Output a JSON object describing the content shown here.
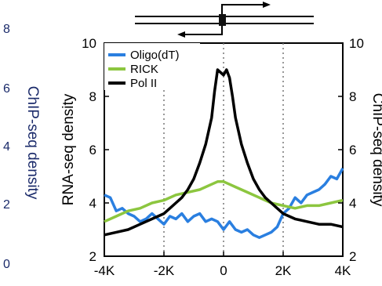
{
  "chart_data": {
    "type": "line",
    "x_ticks": [
      "-4K",
      "-2K",
      "0",
      "2K",
      "4K"
    ],
    "y_left_ticks": [
      "2",
      "4",
      "6",
      "8",
      "10"
    ],
    "y_right_ticks": [
      "2",
      "4",
      "6",
      "8",
      "10"
    ],
    "xlim": [
      -4000,
      4000
    ],
    "ylim": [
      2,
      10
    ],
    "ylabel_left": "RNA-seq density",
    "ylabel_right": "ChIP-seq density",
    "left_panel_fragment": {
      "ylabel": "ChIP-seq density",
      "ticks": [
        "8",
        "6",
        "4",
        "2",
        "0"
      ]
    },
    "legend": {
      "placement": "top-left"
    },
    "grid": {
      "vertical_dotted": [
        -2000,
        0,
        2000
      ]
    },
    "series": [
      {
        "name": "Oligo(dT)",
        "color": "#2a7fe0",
        "x": [
          -4000,
          -3800,
          -3600,
          -3400,
          -3200,
          -3000,
          -2800,
          -2600,
          -2400,
          -2200,
          -2000,
          -1800,
          -1600,
          -1400,
          -1200,
          -1000,
          -800,
          -600,
          -400,
          -200,
          0,
          200,
          400,
          600,
          800,
          1000,
          1200,
          1400,
          1600,
          1800,
          2000,
          2200,
          2400,
          2600,
          2800,
          3000,
          3200,
          3400,
          3600,
          3800,
          4000
        ],
        "y": [
          4.3,
          4.2,
          3.7,
          3.8,
          3.6,
          3.5,
          3.3,
          3.4,
          3.6,
          3.4,
          3.2,
          3.5,
          3.4,
          3.6,
          3.3,
          3.5,
          3.6,
          3.3,
          3.4,
          3.3,
          3.0,
          3.3,
          3.0,
          2.9,
          3.0,
          2.8,
          2.7,
          2.8,
          2.9,
          3.1,
          3.6,
          3.8,
          4.2,
          4.0,
          4.3,
          4.4,
          4.5,
          4.7,
          5.0,
          4.9,
          5.3
        ]
      },
      {
        "name": "RICK",
        "color": "#8cc63f",
        "x": [
          -4000,
          -3600,
          -3200,
          -2800,
          -2400,
          -2000,
          -1600,
          -1200,
          -800,
          -400,
          -200,
          0,
          200,
          400,
          800,
          1200,
          1600,
          2000,
          2400,
          2800,
          3200,
          3600,
          4000
        ],
        "y": [
          3.3,
          3.5,
          3.7,
          3.8,
          4.0,
          4.1,
          4.3,
          4.4,
          4.5,
          4.7,
          4.8,
          4.8,
          4.7,
          4.6,
          4.4,
          4.2,
          4.0,
          3.9,
          3.8,
          3.9,
          3.9,
          4.0,
          4.1
        ]
      },
      {
        "name": "Pol II",
        "color": "#000000",
        "x": [
          -4000,
          -3600,
          -3200,
          -2800,
          -2400,
          -2000,
          -1800,
          -1600,
          -1400,
          -1200,
          -1000,
          -800,
          -600,
          -400,
          -300,
          -200,
          -100,
          0,
          100,
          200,
          300,
          400,
          600,
          800,
          1000,
          1200,
          1400,
          1600,
          1800,
          2000,
          2400,
          2800,
          3200,
          3600,
          4000
        ],
        "y": [
          2.8,
          2.9,
          3.0,
          3.2,
          3.4,
          3.6,
          3.8,
          4.0,
          4.2,
          4.5,
          4.9,
          5.5,
          6.2,
          7.2,
          8.2,
          9.0,
          8.9,
          8.8,
          9.0,
          8.7,
          8.0,
          7.2,
          6.2,
          5.5,
          4.9,
          4.5,
          4.2,
          4.0,
          3.8,
          3.6,
          3.4,
          3.3,
          3.2,
          3.2,
          3.1
        ]
      }
    ]
  },
  "gene_diagram": {
    "line_color": "#000000",
    "block_color": "#111111"
  }
}
